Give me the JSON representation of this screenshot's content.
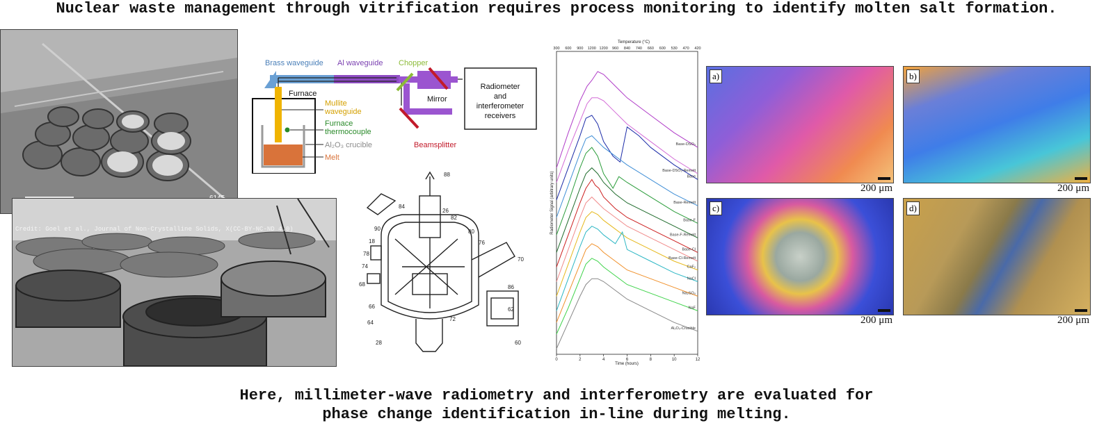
{
  "title": "Nuclear waste management through vitrification requires process monitoring to identify molten salt formation.",
  "photos": {
    "credit": "Credit: Goel et al., Journal of Non-Crystalline Solids, X(CC-BY-NC-ND 4.0)",
    "aerial_tag": "6145"
  },
  "schematic": {
    "brass_waveguide": "Brass waveguide",
    "al_waveguide": "Al waveguide",
    "chopper": "Chopper",
    "mirror": "Mirror",
    "furnace": "Furnace",
    "mullite_waveguide_1": "Mullite",
    "mullite_waveguide_2": "waveguide",
    "thermocouple_1": "Furnace",
    "thermocouple_2": "thermocouple",
    "crucible": "Al₂O₃ crucible",
    "melt": "Melt",
    "beamsplitter": "Beamsplitter",
    "receiver_1": "Radiometer",
    "receiver_2": "and",
    "receiver_3": "interferometer",
    "receiver_4": "receivers"
  },
  "patent_drawing": {
    "labels": [
      "88",
      "84",
      "26",
      "82",
      "90",
      "80",
      "76",
      "18",
      "78",
      "74",
      "70",
      "68",
      "86",
      "66",
      "64",
      "62",
      "28",
      "72",
      "60"
    ]
  },
  "chart_data": {
    "type": "line",
    "title": "",
    "xlabel": "Time (hours)",
    "ylabel": "Radiometer Signal (arbitrary units)",
    "top_axis_label": "Temperature (°C)",
    "xlim": [
      0,
      12
    ],
    "x_ticks": [
      0,
      2,
      4,
      6,
      8,
      10,
      12
    ],
    "top_ticks": [
      "300",
      "600",
      "900",
      "1200",
      "1200",
      "960",
      "840",
      "740",
      "660",
      "600",
      "530",
      "470",
      "420"
    ],
    "grid": false,
    "series": [
      {
        "name": "Base-DSO₃",
        "color": "#b03cc8",
        "x": [
          0,
          1,
          2,
          2.6,
          3,
          3.5,
          4,
          5,
          6,
          8,
          10,
          12
        ],
        "y": [
          0.62,
          0.74,
          0.85,
          0.9,
          0.92,
          0.95,
          0.94,
          0.9,
          0.86,
          0.8,
          0.74,
          0.69
        ]
      },
      {
        "name": "Base-DSO₃-Remelt",
        "color": "#d36ad6",
        "x": [
          0,
          1,
          2,
          2.6,
          3,
          3.5,
          4,
          5,
          6,
          8,
          10,
          12
        ],
        "y": [
          0.57,
          0.68,
          0.78,
          0.84,
          0.86,
          0.86,
          0.85,
          0.81,
          0.77,
          0.71,
          0.65,
          0.6
        ]
      },
      {
        "name": "Base",
        "color": "#1b2ba8",
        "x": [
          0,
          1,
          2,
          2.5,
          3,
          3.5,
          4,
          4.8,
          5.4,
          6,
          7,
          8,
          10,
          12
        ],
        "y": [
          0.51,
          0.62,
          0.73,
          0.79,
          0.8,
          0.77,
          0.71,
          0.66,
          0.64,
          0.76,
          0.73,
          0.69,
          0.63,
          0.58
        ]
      },
      {
        "name": "Base-Remelt",
        "color": "#3f8ed6",
        "x": [
          0,
          1,
          2,
          2.5,
          3,
          3.5,
          4,
          5,
          6,
          8,
          10,
          12
        ],
        "y": [
          0.45,
          0.56,
          0.67,
          0.72,
          0.73,
          0.71,
          0.69,
          0.66,
          0.63,
          0.58,
          0.53,
          0.49
        ]
      },
      {
        "name": "Base-F",
        "color": "#2a9c3a",
        "x": [
          0,
          1,
          2,
          2.5,
          3,
          3.5,
          4,
          4.8,
          5.3,
          6,
          8,
          10,
          12
        ],
        "y": [
          0.39,
          0.5,
          0.62,
          0.67,
          0.69,
          0.66,
          0.6,
          0.55,
          0.59,
          0.57,
          0.52,
          0.47,
          0.43
        ]
      },
      {
        "name": "Base-F-Remelt",
        "color": "#1f6b2c",
        "x": [
          0,
          1,
          2,
          2.5,
          3,
          3.5,
          4,
          5,
          6,
          8,
          10,
          12
        ],
        "y": [
          0.33,
          0.44,
          0.55,
          0.6,
          0.62,
          0.6,
          0.57,
          0.53,
          0.5,
          0.46,
          0.42,
          0.38
        ]
      },
      {
        "name": "Base-Cl",
        "color": "#cc1f1f",
        "x": [
          0,
          1,
          2,
          2.5,
          3,
          3.3,
          3.6,
          4,
          5,
          6,
          8,
          10,
          12
        ],
        "y": [
          0.28,
          0.39,
          0.5,
          0.55,
          0.58,
          0.56,
          0.55,
          0.52,
          0.48,
          0.45,
          0.41,
          0.37,
          0.33
        ]
      },
      {
        "name": "Base-Cl-Remelt",
        "color": "#f08a8a",
        "x": [
          0,
          1,
          2,
          2.5,
          3,
          3.5,
          4,
          5,
          6,
          8,
          10,
          12
        ],
        "y": [
          0.23,
          0.34,
          0.45,
          0.5,
          0.52,
          0.5,
          0.48,
          0.45,
          0.42,
          0.38,
          0.34,
          0.3
        ]
      },
      {
        "name": "CaF₂",
        "color": "#e6b81c",
        "x": [
          0,
          1,
          2,
          2.5,
          3,
          3.5,
          4,
          5,
          6,
          8,
          10,
          12
        ],
        "y": [
          0.18,
          0.29,
          0.4,
          0.45,
          0.47,
          0.46,
          0.44,
          0.41,
          0.38,
          0.34,
          0.3,
          0.27
        ]
      },
      {
        "name": "NaCl",
        "color": "#2bb6c4",
        "x": [
          0,
          1,
          2,
          2.5,
          3,
          3.5,
          4,
          5,
          5.6,
          6,
          8,
          10,
          12
        ],
        "y": [
          0.13,
          0.24,
          0.35,
          0.4,
          0.42,
          0.41,
          0.39,
          0.36,
          0.4,
          0.34,
          0.3,
          0.26,
          0.23
        ]
      },
      {
        "name": "Na₂SO₄",
        "color": "#f0902a",
        "x": [
          0,
          1,
          2,
          2.5,
          3,
          3.5,
          4,
          5,
          6,
          8,
          10,
          12
        ],
        "y": [
          0.09,
          0.19,
          0.29,
          0.34,
          0.36,
          0.35,
          0.33,
          0.3,
          0.27,
          0.24,
          0.21,
          0.18
        ]
      },
      {
        "name": "NaF",
        "color": "#3fd34a",
        "x": [
          0,
          1,
          2,
          2.5,
          3,
          3.5,
          4,
          5,
          6,
          8,
          10,
          12
        ],
        "y": [
          0.05,
          0.14,
          0.24,
          0.29,
          0.31,
          0.3,
          0.28,
          0.25,
          0.22,
          0.19,
          0.16,
          0.13
        ]
      },
      {
        "name": "Al₂O₃-Crucible",
        "color": "#888888",
        "x": [
          0,
          1,
          2,
          2.5,
          3,
          3.5,
          4,
          5,
          6,
          8,
          10,
          12
        ],
        "y": [
          0.0,
          0.09,
          0.18,
          0.22,
          0.24,
          0.24,
          0.23,
          0.2,
          0.17,
          0.13,
          0.09,
          0.06
        ]
      }
    ]
  },
  "micrographs": [
    {
      "letter": "a)",
      "scale": "200 μm",
      "colors": [
        "#5a6fe0",
        "#e05aa8",
        "#f08a50"
      ]
    },
    {
      "letter": "b)",
      "scale": "200 μm",
      "colors": [
        "#f2a23a",
        "#3f7de8",
        "#48c6d8"
      ]
    },
    {
      "letter": "c)",
      "scale": "200 μm",
      "colors": [
        "#3b4fd8",
        "#e8c24a",
        "#b8c8c0"
      ]
    },
    {
      "letter": "d)",
      "scale": "200 μm",
      "colors": [
        "#c9a04a",
        "#8a7a4a",
        "#4a6aa8"
      ]
    }
  ],
  "bottom_text": {
    "line1": "Here, millimeter-wave radiometry and interferometry are evaluated for",
    "line2": "phase change identification in-line during melting."
  }
}
